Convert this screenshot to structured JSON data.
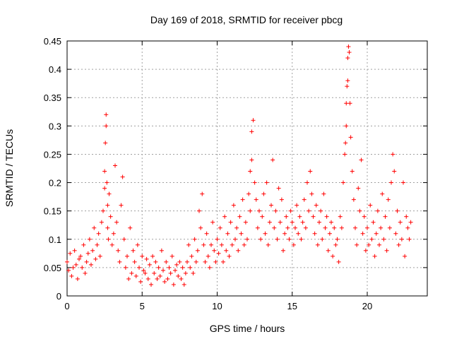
{
  "chart_data": {
    "type": "scatter",
    "title": "Day 169 of 2018, SRMTID for receiver pbcg",
    "xlabel": "GPS time / hours",
    "ylabel": "SRMTID / TECUs",
    "xlim": [
      0,
      24
    ],
    "ylim": [
      0,
      0.45
    ],
    "xticks": [
      0,
      5,
      10,
      15,
      20
    ],
    "xtick_labels": [
      "0",
      "5",
      "10",
      "15",
      "20"
    ],
    "yticks": [
      0,
      0.05,
      0.1,
      0.15,
      0.2,
      0.25,
      0.3,
      0.35,
      0.4,
      0.45
    ],
    "ytick_labels": [
      "0",
      "0.05",
      "0.1",
      "0.15",
      "0.2",
      "0.25",
      "0.3",
      "0.35",
      "0.4",
      "0.45"
    ],
    "grid": true,
    "marker": "+",
    "color": "#ff0000",
    "series": [
      {
        "name": "SRMTID",
        "x": [
          0.0,
          0.1,
          0.2,
          0.3,
          0.4,
          0.5,
          0.6,
          0.7,
          0.8,
          0.9,
          1.0,
          1.1,
          1.2,
          1.3,
          1.4,
          1.5,
          1.6,
          1.7,
          1.8,
          1.9,
          2.0,
          2.1,
          2.2,
          2.3,
          2.4,
          2.5,
          2.5,
          2.55,
          2.6,
          2.6,
          2.65,
          2.7,
          2.7,
          2.75,
          2.8,
          2.9,
          3.0,
          3.1,
          3.2,
          3.3,
          3.4,
          3.5,
          3.6,
          3.7,
          3.8,
          3.9,
          4.0,
          4.1,
          4.2,
          4.3,
          4.4,
          4.5,
          4.6,
          4.7,
          4.8,
          4.9,
          5.0,
          5.1,
          5.2,
          5.3,
          5.4,
          5.5,
          5.6,
          5.7,
          5.8,
          5.9,
          6.0,
          6.1,
          6.2,
          6.3,
          6.4,
          6.5,
          6.6,
          6.7,
          6.8,
          6.9,
          7.0,
          7.1,
          7.2,
          7.3,
          7.4,
          7.5,
          7.6,
          7.7,
          7.8,
          7.9,
          8.0,
          8.1,
          8.2,
          8.3,
          8.4,
          8.5,
          8.6,
          8.7,
          8.8,
          8.9,
          9.0,
          9.1,
          9.2,
          9.3,
          9.4,
          9.5,
          9.6,
          9.7,
          9.8,
          9.9,
          10.0,
          10.1,
          10.2,
          10.3,
          10.4,
          10.5,
          10.6,
          10.7,
          10.8,
          10.9,
          11.0,
          11.1,
          11.2,
          11.3,
          11.4,
          11.5,
          11.6,
          11.7,
          11.8,
          11.9,
          12.0,
          12.1,
          12.2,
          12.2,
          12.3,
          12.3,
          12.4,
          12.5,
          12.6,
          12.7,
          12.8,
          12.9,
          13.0,
          13.1,
          13.2,
          13.3,
          13.4,
          13.5,
          13.6,
          13.7,
          13.8,
          13.9,
          14.0,
          14.1,
          14.2,
          14.3,
          14.4,
          14.5,
          14.6,
          14.7,
          14.8,
          14.9,
          15.0,
          15.1,
          15.2,
          15.3,
          15.4,
          15.5,
          15.6,
          15.7,
          15.8,
          15.9,
          16.0,
          16.1,
          16.2,
          16.3,
          16.4,
          16.5,
          16.6,
          16.7,
          16.8,
          16.9,
          17.0,
          17.1,
          17.2,
          17.3,
          17.4,
          17.5,
          17.6,
          17.7,
          17.8,
          17.9,
          18.0,
          18.1,
          18.2,
          18.3,
          18.4,
          18.5,
          18.55,
          18.6,
          18.6,
          18.65,
          18.7,
          18.7,
          18.75,
          18.8,
          18.85,
          18.9,
          19.0,
          19.1,
          19.2,
          19.3,
          19.4,
          19.5,
          19.6,
          19.7,
          19.8,
          19.9,
          20.0,
          20.1,
          20.2,
          20.3,
          20.4,
          20.5,
          20.6,
          20.7,
          20.8,
          20.9,
          21.0,
          21.1,
          21.2,
          21.3,
          21.4,
          21.5,
          21.6,
          21.7,
          21.8,
          21.9,
          22.0,
          22.1,
          22.2,
          22.3,
          22.4,
          22.5,
          22.6,
          22.7,
          22.8,
          22.9
        ],
        "y": [
          0.06,
          0.045,
          0.075,
          0.035,
          0.05,
          0.08,
          0.055,
          0.03,
          0.065,
          0.07,
          0.05,
          0.09,
          0.04,
          0.06,
          0.075,
          0.1,
          0.055,
          0.08,
          0.12,
          0.065,
          0.09,
          0.11,
          0.07,
          0.13,
          0.15,
          0.19,
          0.22,
          0.27,
          0.3,
          0.32,
          0.2,
          0.16,
          0.12,
          0.1,
          0.18,
          0.14,
          0.09,
          0.11,
          0.23,
          0.13,
          0.08,
          0.06,
          0.16,
          0.21,
          0.1,
          0.05,
          0.07,
          0.03,
          0.12,
          0.04,
          0.08,
          0.06,
          0.035,
          0.09,
          0.05,
          0.025,
          0.07,
          0.045,
          0.04,
          0.065,
          0.03,
          0.055,
          0.02,
          0.07,
          0.04,
          0.06,
          0.03,
          0.05,
          0.035,
          0.08,
          0.045,
          0.025,
          0.06,
          0.03,
          0.05,
          0.04,
          0.07,
          0.02,
          0.045,
          0.055,
          0.035,
          0.06,
          0.03,
          0.05,
          0.02,
          0.04,
          0.06,
          0.09,
          0.05,
          0.07,
          0.04,
          0.1,
          0.06,
          0.08,
          0.15,
          0.12,
          0.18,
          0.09,
          0.06,
          0.11,
          0.07,
          0.05,
          0.09,
          0.13,
          0.08,
          0.06,
          0.1,
          0.075,
          0.12,
          0.09,
          0.06,
          0.14,
          0.08,
          0.11,
          0.07,
          0.13,
          0.09,
          0.16,
          0.1,
          0.12,
          0.08,
          0.14,
          0.11,
          0.17,
          0.09,
          0.13,
          0.1,
          0.18,
          0.15,
          0.22,
          0.24,
          0.29,
          0.31,
          0.2,
          0.17,
          0.12,
          0.15,
          0.1,
          0.14,
          0.18,
          0.11,
          0.2,
          0.09,
          0.13,
          0.16,
          0.24,
          0.12,
          0.15,
          0.1,
          0.19,
          0.13,
          0.17,
          0.08,
          0.11,
          0.14,
          0.12,
          0.1,
          0.15,
          0.13,
          0.09,
          0.12,
          0.16,
          0.11,
          0.14,
          0.1,
          0.13,
          0.17,
          0.12,
          0.2,
          0.15,
          0.22,
          0.18,
          0.14,
          0.11,
          0.16,
          0.09,
          0.13,
          0.15,
          0.1,
          0.18,
          0.12,
          0.14,
          0.08,
          0.11,
          0.13,
          0.07,
          0.12,
          0.09,
          0.1,
          0.06,
          0.14,
          0.12,
          0.2,
          0.25,
          0.27,
          0.3,
          0.34,
          0.37,
          0.38,
          0.42,
          0.44,
          0.43,
          0.34,
          0.28,
          0.22,
          0.17,
          0.12,
          0.09,
          0.19,
          0.15,
          0.24,
          0.11,
          0.14,
          0.08,
          0.12,
          0.09,
          0.16,
          0.1,
          0.13,
          0.07,
          0.11,
          0.15,
          0.09,
          0.12,
          0.18,
          0.1,
          0.14,
          0.08,
          0.17,
          0.12,
          0.2,
          0.25,
          0.22,
          0.11,
          0.15,
          0.09,
          0.13,
          0.1,
          0.2,
          0.07,
          0.14,
          0.12,
          0.1,
          0.13
        ]
      }
    ]
  }
}
